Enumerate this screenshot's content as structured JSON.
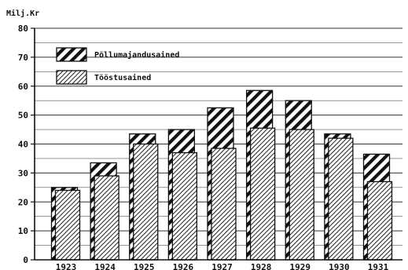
{
  "chart_data": {
    "type": "bar",
    "title": "",
    "xlabel": "",
    "ylabel": "Milj.Kr",
    "ylim": [
      0,
      80
    ],
    "yticks": [
      0,
      10,
      20,
      30,
      40,
      50,
      60,
      70,
      80
    ],
    "grid": true,
    "legend_position": "top-left",
    "categories": [
      "1923",
      "1924",
      "1925",
      "1926",
      "1927",
      "1928",
      "1929",
      "1930",
      "1931"
    ],
    "series": [
      {
        "name": "Põllumajandusained",
        "pattern": "bold-diagonal-hatch",
        "color": "#111111",
        "values": [
          25,
          33.5,
          43.5,
          45,
          52.5,
          58.5,
          55,
          43.5,
          36.5
        ]
      },
      {
        "name": "Tööstusained",
        "pattern": "fine-diagonal-hatch",
        "color": "#111111",
        "values": [
          24,
          29,
          40,
          37,
          38.5,
          45.5,
          45,
          42,
          27
        ]
      }
    ]
  }
}
